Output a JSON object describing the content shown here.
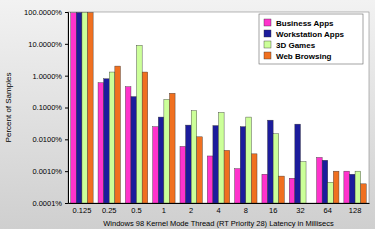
{
  "chart_data": {
    "type": "bar",
    "x_label": "Windows 98 Kernel Mode Thread (RT Priority 28) Latency in Millisecs",
    "y_label": "Percent of Samples",
    "categories": [
      "0.125",
      "0.25",
      "0.5",
      "1",
      "2",
      "4",
      "8",
      "16",
      "32",
      "64",
      "128"
    ],
    "series": [
      {
        "name": "Business Apps",
        "color": "#ff33cc",
        "values": [
          95,
          0.6,
          0.45,
          0.025,
          0.006,
          0.003,
          0.0012,
          0.0008,
          0.0006,
          0.0027,
          0.001
        ]
      },
      {
        "name": "Workstation Apps",
        "color": "#1c1c9c",
        "values": [
          97,
          0.8,
          0.22,
          0.05,
          0.028,
          0.027,
          0.025,
          0.04,
          0.03,
          0.0022,
          0.0008
        ]
      },
      {
        "name": "3D Games",
        "color": "#ccff99",
        "values": [
          98,
          1.3,
          9,
          0.18,
          0.08,
          0.07,
          0.05,
          0.015,
          0.002,
          0.00045,
          0.001
        ]
      },
      {
        "name": "Web Browsing",
        "color": "#f07020",
        "values": [
          97,
          2,
          1.3,
          0.28,
          0.012,
          0.0045,
          0.0035,
          0.0007,
          null,
          0.001,
          0.0004
        ]
      }
    ],
    "log": "y",
    "ylim": [
      0.0001,
      100
    ],
    "yticks": [
      {
        "value": 0.0001,
        "label": "0.0001%"
      },
      {
        "value": 0.001,
        "label": "0.0010%"
      },
      {
        "value": 0.01,
        "label": "0.0100%"
      },
      {
        "value": 0.1,
        "label": "0.1000%"
      },
      {
        "value": 1,
        "label": "1.0000%"
      },
      {
        "value": 10,
        "label": "10.0000%"
      },
      {
        "value": 100,
        "label": "100.0000%"
      }
    ],
    "grid": false,
    "legend": "top-right"
  }
}
